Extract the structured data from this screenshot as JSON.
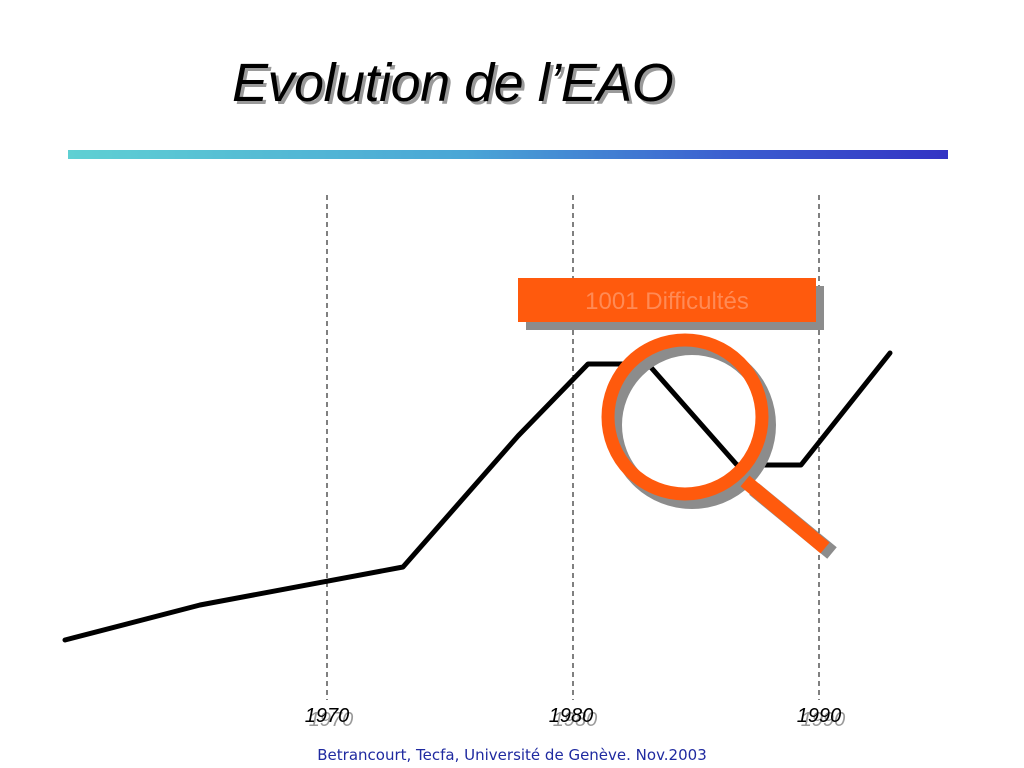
{
  "slide": {
    "title": "Evolution de l’EAO",
    "footer": "Betrancourt, Tecfa, Université de Genève. Nov.2003"
  },
  "timeline": {
    "ticks": [
      "1970",
      "1980",
      "1990"
    ],
    "callout_label": "1001 Difficultés",
    "colors": {
      "curve": "#000000",
      "accent": "#ff5a0d",
      "shadow": "#8c8c8c",
      "callout_text": "#ff8a55"
    },
    "icons": [
      "magnifying-glass-icon"
    ]
  }
}
